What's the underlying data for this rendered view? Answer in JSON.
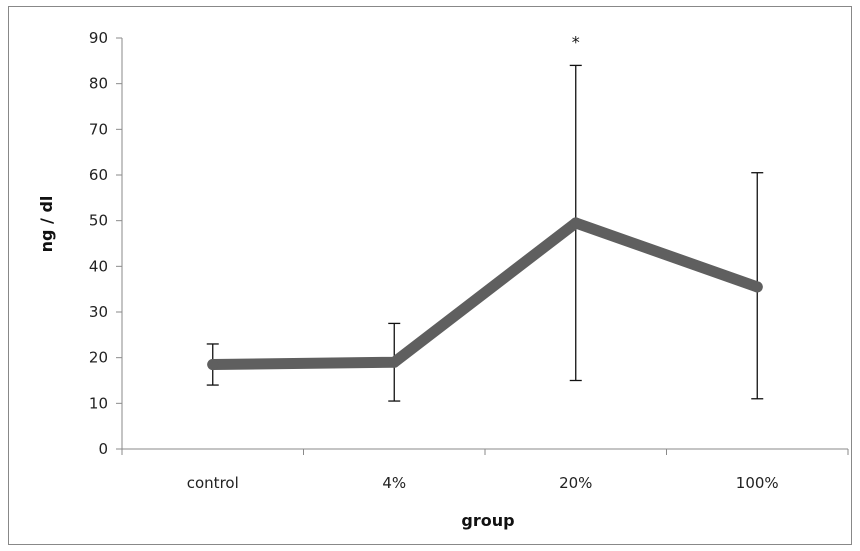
{
  "chart_data": {
    "type": "line",
    "categories": [
      "control",
      "4%",
      "20%",
      "100%"
    ],
    "series": [
      {
        "values": [
          18.5,
          19,
          49.5,
          35.5
        ],
        "error_upper": [
          23,
          27.5,
          84,
          60.5
        ],
        "error_lower": [
          14,
          10.5,
          15,
          11
        ],
        "color": "#5f5f5f"
      }
    ],
    "annotations": [
      {
        "category": "20%",
        "text": "*"
      }
    ],
    "xlabel": "group",
    "ylabel": "ng / dl",
    "ylim": [
      0,
      90
    ],
    "yticks": [
      0,
      10,
      20,
      30,
      40,
      50,
      60,
      70,
      80,
      90
    ],
    "grid": false,
    "legend": "none"
  }
}
